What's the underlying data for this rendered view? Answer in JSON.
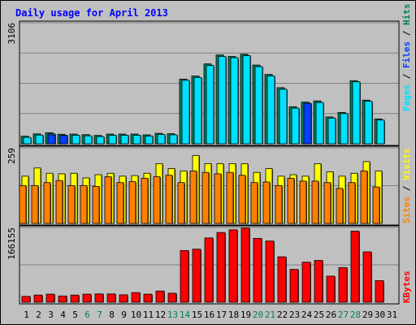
{
  "chart_data": [
    {
      "type": "bar",
      "title": "Daily usage for April 2013",
      "categories": [
        "1",
        "2",
        "3",
        "4",
        "5",
        "6",
        "7",
        "8",
        "9",
        "10",
        "11",
        "12",
        "13",
        "14",
        "15",
        "16",
        "17",
        "18",
        "19",
        "20",
        "21",
        "22",
        "23",
        "24",
        "25",
        "26",
        "27",
        "28",
        "29",
        "30",
        "31"
      ],
      "weekend_days": [
        "6",
        "7",
        "13",
        "14",
        "20",
        "21",
        "27",
        "28"
      ],
      "ymax_label": "3106",
      "ylim": [
        0,
        3106
      ],
      "legend": {
        "pages": "Pages",
        "files": "Files",
        "hits": "Hits",
        "sep": " / "
      },
      "series": [
        {
          "name": "Hits",
          "color": "#00805c",
          "values": [
            195,
            255,
            285,
            245,
            250,
            235,
            215,
            250,
            250,
            250,
            230,
            270,
            260,
            1660,
            1740,
            2050,
            2280,
            2240,
            2300,
            2020,
            1780,
            1440,
            950,
            1070,
            1100,
            690,
            805,
            1620,
            1120,
            640,
            0
          ]
        },
        {
          "name": "Files",
          "color": "#00e0ff",
          "values": [
            165,
            225,
            255,
            215,
            220,
            205,
            185,
            220,
            220,
            220,
            200,
            240,
            230,
            1630,
            1700,
            2010,
            2240,
            2210,
            2260,
            1980,
            1740,
            1400,
            915,
            1040,
            1060,
            660,
            775,
            1590,
            1090,
            610,
            0
          ]
        },
        {
          "name": "Pages",
          "color": "#0040ff",
          "values": [
            0,
            0,
            230,
            215,
            0,
            0,
            0,
            0,
            0,
            0,
            0,
            0,
            0,
            0,
            0,
            0,
            0,
            0,
            0,
            0,
            0,
            0,
            0,
            1040,
            0,
            0,
            0,
            0,
            0,
            0,
            0
          ]
        }
      ]
    },
    {
      "type": "bar",
      "ymax_label": "259",
      "ylim": [
        0,
        259
      ],
      "legend": {
        "sites": "Sites",
        "visits": "Visits",
        "sep": " / "
      },
      "series": [
        {
          "name": "Visits",
          "color": "#ffff00",
          "values": [
            162,
            190,
            172,
            170,
            172,
            156,
            167,
            172,
            162,
            164,
            172,
            205,
            188,
            180,
            233,
            205,
            205,
            205,
            205,
            175,
            188,
            162,
            167,
            162,
            205,
            177,
            162,
            172,
            212,
            180,
            0
          ]
        },
        {
          "name": "Sites",
          "color": "#ff8000",
          "values": [
            130,
            130,
            140,
            147,
            130,
            130,
            127,
            160,
            140,
            143,
            155,
            160,
            165,
            140,
            180,
            175,
            170,
            175,
            165,
            140,
            142,
            130,
            155,
            145,
            145,
            140,
            120,
            140,
            180,
            125,
            0
          ]
        }
      ]
    },
    {
      "type": "bar",
      "ymax_label": "166155",
      "ylim": [
        0,
        166155
      ],
      "legend": {
        "kbytes": "KBytes"
      },
      "series": [
        {
          "name": "KBytes",
          "color": "#ff0000",
          "values": [
            13000,
            16000,
            18000,
            14000,
            16000,
            18000,
            18500,
            18500,
            16500,
            21500,
            18000,
            25000,
            20000,
            115000,
            118000,
            143000,
            155000,
            161000,
            165000,
            142000,
            136000,
            101000,
            73000,
            89000,
            93000,
            58000,
            77000,
            158000,
            112000,
            48000,
            0
          ]
        }
      ]
    }
  ]
}
